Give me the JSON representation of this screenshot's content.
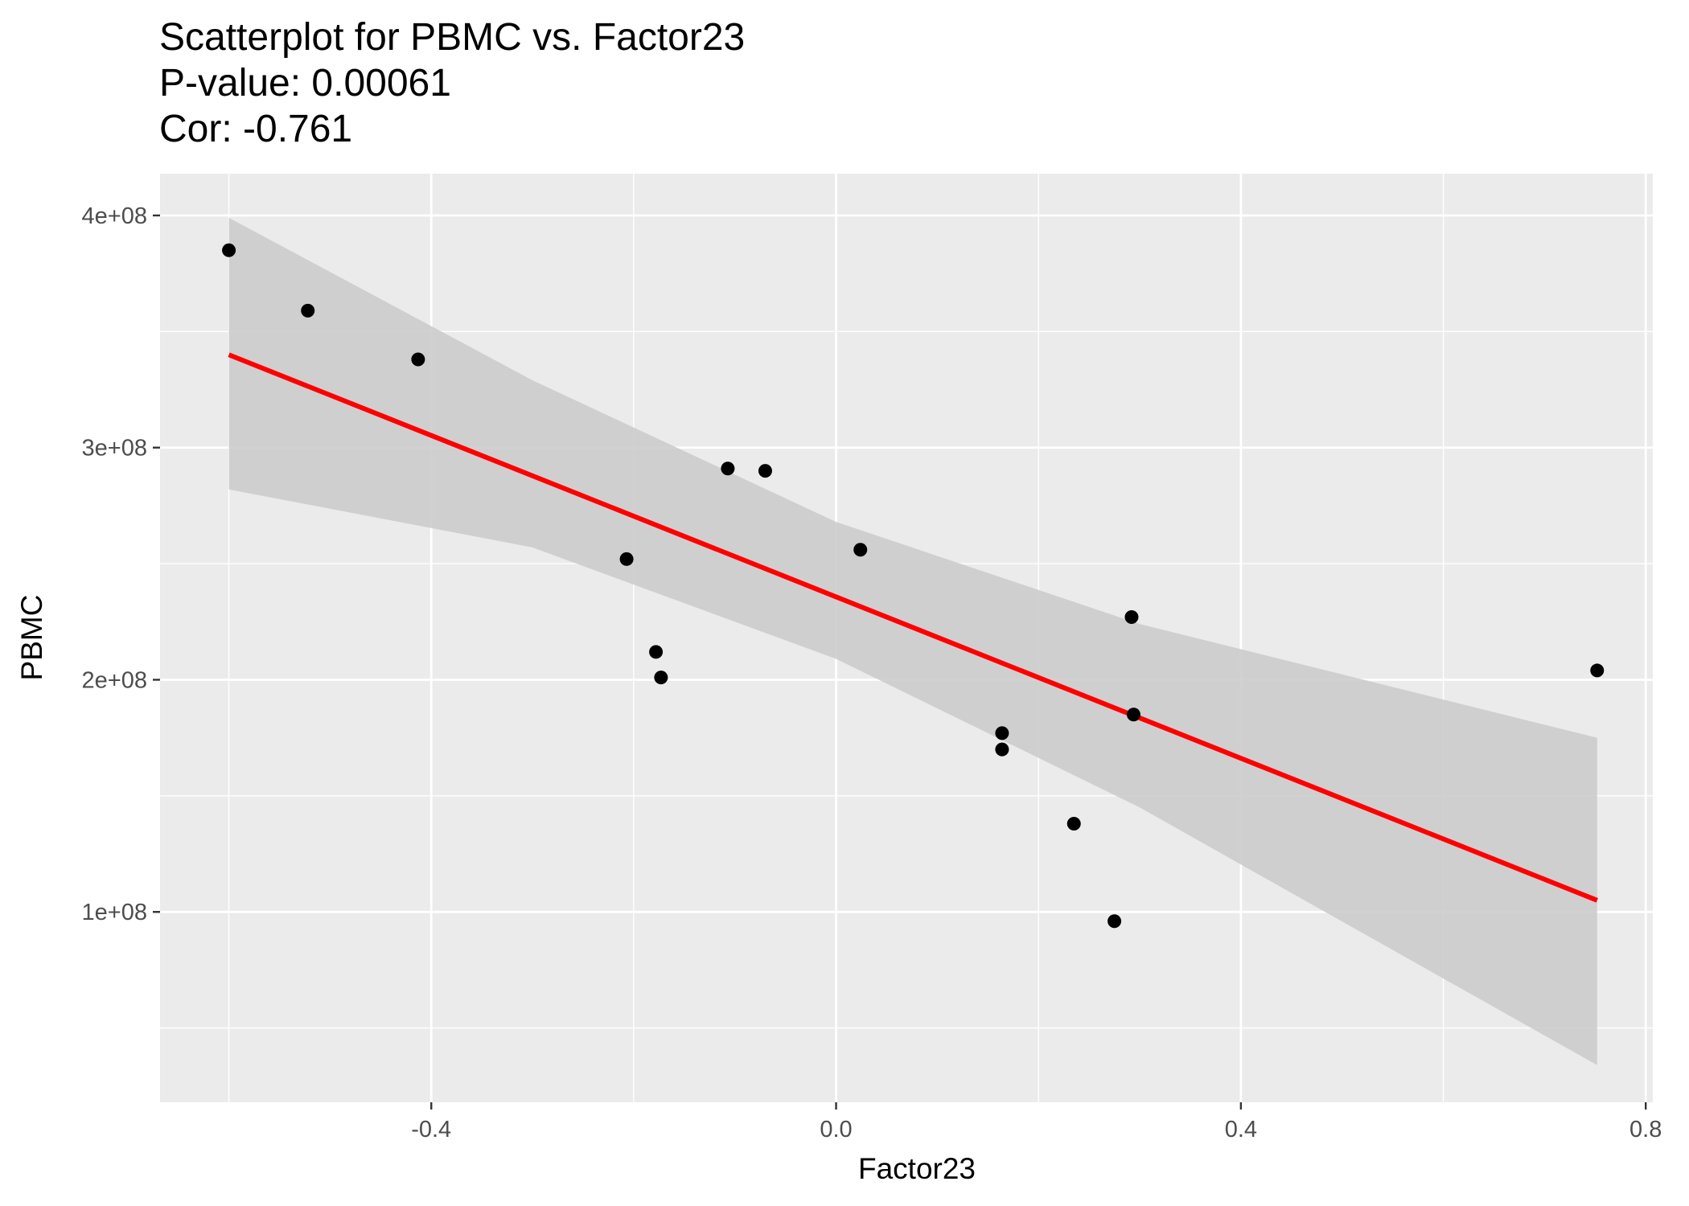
{
  "title_lines": [
    "Scatterplot for PBMC vs. Factor23",
    "P-value: 0.00061",
    "Cor: -0.761"
  ],
  "chart_data": {
    "type": "scatter",
    "title": "Scatterplot for PBMC vs. Factor23",
    "subtitle": [
      "P-value: 0.00061",
      "Cor: -0.761"
    ],
    "xlabel": "Factor23",
    "ylabel": "PBMC",
    "xlim": [
      -0.668,
      0.807
    ],
    "ylim": [
      18000000,
      418000000
    ],
    "x_ticks": [
      -0.4,
      0.0,
      0.4,
      0.8
    ],
    "x_tick_labels": [
      "-0.4",
      "0.0",
      "0.4",
      "0.8"
    ],
    "y_ticks": [
      100000000,
      200000000,
      300000000,
      400000000
    ],
    "y_tick_labels": [
      "1e+08",
      "2e+08",
      "3e+08",
      "4e+08"
    ],
    "grid": true,
    "background": "#ebebeb",
    "points": [
      {
        "x": -0.6,
        "y": 385000000
      },
      {
        "x": -0.522,
        "y": 359000000
      },
      {
        "x": -0.413,
        "y": 338000000
      },
      {
        "x": -0.207,
        "y": 252000000
      },
      {
        "x": -0.178,
        "y": 212000000
      },
      {
        "x": -0.173,
        "y": 201000000
      },
      {
        "x": -0.107,
        "y": 291000000
      },
      {
        "x": -0.07,
        "y": 290000000
      },
      {
        "x": 0.024,
        "y": 256000000
      },
      {
        "x": 0.164,
        "y": 177000000
      },
      {
        "x": 0.164,
        "y": 170000000
      },
      {
        "x": 0.235,
        "y": 138000000
      },
      {
        "x": 0.275,
        "y": 96000000
      },
      {
        "x": 0.292,
        "y": 227000000
      },
      {
        "x": 0.294,
        "y": 185000000
      },
      {
        "x": 0.752,
        "y": 204000000
      }
    ],
    "fit_line": {
      "x": [
        -0.6,
        0.752
      ],
      "y": [
        340000000,
        105000000
      ],
      "color": "#ff0000"
    },
    "confidence_band": {
      "x": [
        -0.6,
        -0.3,
        0.0,
        0.3,
        0.752
      ],
      "upper": [
        399000000,
        329000000,
        268000000,
        224000000,
        175000000
      ],
      "lower": [
        282000000,
        257000000,
        209000000,
        145000000,
        34000000
      ],
      "color": "#cccccc"
    },
    "point_color": "#000000"
  }
}
